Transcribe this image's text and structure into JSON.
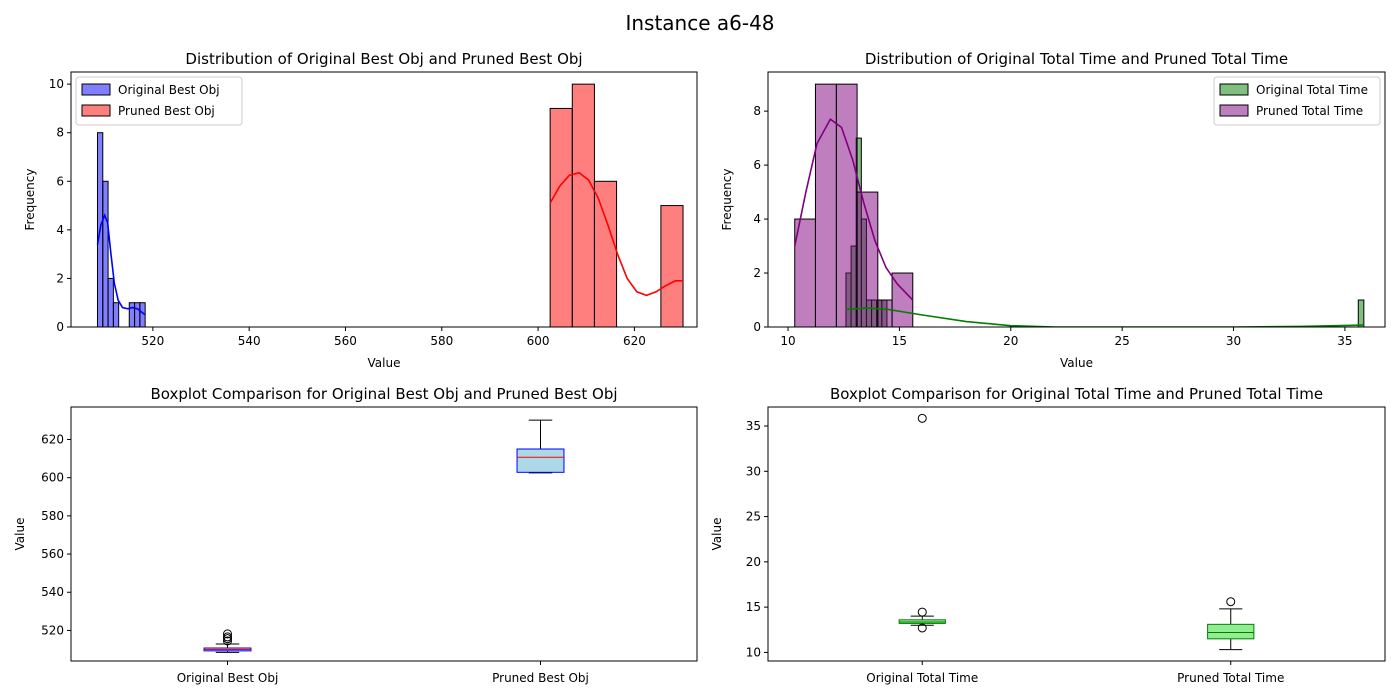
{
  "figure": {
    "suptitle": "Instance a6-48"
  },
  "chart_data": [
    {
      "id": "hist-obj",
      "type": "bar",
      "title": "Distribution of Original Best Obj and Pruned Best Obj",
      "xlabel": "Value",
      "ylabel": "Frequency",
      "xlim": [
        503,
        633
      ],
      "ylim": [
        0,
        10.5
      ],
      "xticks": [
        520,
        540,
        560,
        580,
        600,
        620
      ],
      "yticks": [
        0,
        2,
        4,
        6,
        8,
        10
      ],
      "legend_position": "upper-left",
      "series": [
        {
          "name": "Original Best Obj",
          "color": "#0000ff",
          "bin_edges": [
            508.5,
            509.6,
            510.7,
            511.8,
            512.9,
            514.0,
            515.1,
            516.2,
            517.3,
            518.4
          ],
          "counts": [
            8,
            6,
            2,
            1,
            0,
            0,
            1,
            1,
            1
          ],
          "kde": [
            [
              508.5,
              3.4
            ],
            [
              509.2,
              4.2
            ],
            [
              510.0,
              4.6
            ],
            [
              510.6,
              4.3
            ],
            [
              511.3,
              3.0
            ],
            [
              512.0,
              1.8
            ],
            [
              512.8,
              1.1
            ],
            [
              513.7,
              0.8
            ],
            [
              514.8,
              0.75
            ],
            [
              515.8,
              0.8
            ],
            [
              516.8,
              0.75
            ],
            [
              518.4,
              0.5
            ]
          ]
        },
        {
          "name": "Pruned Best Obj",
          "color": "#ff0000",
          "bin_edges": [
            602.5,
            607.1,
            611.7,
            616.3,
            620.9,
            625.5,
            630.1
          ],
          "counts": [
            9,
            10,
            6,
            0,
            0,
            5
          ],
          "kde": [
            [
              602.5,
              5.1
            ],
            [
              604.5,
              5.8
            ],
            [
              606.5,
              6.25
            ],
            [
              608.5,
              6.35
            ],
            [
              610.5,
              6.05
            ],
            [
              612.5,
              5.3
            ],
            [
              614.5,
              4.2
            ],
            [
              616.5,
              3.0
            ],
            [
              618.5,
              2.0
            ],
            [
              620.5,
              1.45
            ],
            [
              622.5,
              1.3
            ],
            [
              624.5,
              1.45
            ],
            [
              626.5,
              1.7
            ],
            [
              628.5,
              1.9
            ],
            [
              630.1,
              1.9
            ]
          ]
        }
      ]
    },
    {
      "id": "hist-time",
      "type": "bar",
      "title": "Distribution of Original Total Time and Pruned Total Time",
      "xlabel": "Value",
      "ylabel": "Frequency",
      "xlim": [
        9.1,
        36.8
      ],
      "ylim": [
        0,
        9.45
      ],
      "xticks": [
        10,
        15,
        20,
        25,
        30,
        35
      ],
      "yticks": [
        0,
        2,
        4,
        6,
        8
      ],
      "legend_position": "upper-right",
      "series": [
        {
          "name": "Original Total Time",
          "color": "#008000",
          "bin_edges": [
            12.6,
            12.83,
            13.06,
            13.29,
            13.52,
            13.75,
            13.98,
            14.21,
            14.44,
            35.6,
            35.85
          ],
          "counts": [
            2,
            3,
            7,
            4,
            1,
            1,
            1,
            1,
            0,
            1
          ],
          "kde": [
            [
              12.6,
              0.65
            ],
            [
              13.5,
              0.7
            ],
            [
              14.5,
              0.65
            ],
            [
              16.0,
              0.45
            ],
            [
              18.0,
              0.2
            ],
            [
              20.0,
              0.05
            ],
            [
              22.0,
              0.0
            ],
            [
              25.0,
              0.0
            ],
            [
              30.0,
              0.0
            ],
            [
              33.0,
              0.02
            ],
            [
              35.85,
              0.07
            ]
          ]
        },
        {
          "name": "Pruned Total Time",
          "color": "#800080",
          "bin_edges": [
            10.3,
            11.23,
            12.17,
            13.1,
            14.03,
            14.67,
            15.6
          ],
          "counts": [
            4,
            9,
            9,
            5,
            1,
            2
          ],
          "kde": [
            [
              10.3,
              3.0
            ],
            [
              10.8,
              5.0
            ],
            [
              11.3,
              6.8
            ],
            [
              11.9,
              7.7
            ],
            [
              12.4,
              7.4
            ],
            [
              12.9,
              6.2
            ],
            [
              13.4,
              4.6
            ],
            [
              13.9,
              3.2
            ],
            [
              14.4,
              2.2
            ],
            [
              14.9,
              1.6
            ],
            [
              15.6,
              1.0
            ]
          ]
        }
      ]
    },
    {
      "id": "box-obj",
      "type": "box",
      "title": "Boxplot Comparison for Original Best Obj and Pruned Best Obj",
      "xlabel": "",
      "ylabel": "Value",
      "ylim": [
        504,
        637
      ],
      "yticks": [
        520,
        540,
        560,
        580,
        600,
        620
      ],
      "box_fill": "#add8e6",
      "box_edge": "#0000ff",
      "median_color": "#ff0000",
      "categories": [
        "Original Best Obj",
        "Pruned Best Obj"
      ],
      "boxes": [
        {
          "whislo": 508.5,
          "q1": 509.3,
          "med": 510.0,
          "q3": 510.8,
          "whishi": 512.9,
          "fliers": [
            514.5,
            515.7,
            516.6,
            518.2
          ]
        },
        {
          "whislo": 602.5,
          "q1": 602.8,
          "med": 610.7,
          "q3": 615.0,
          "whishi": 630.1,
          "fliers": []
        }
      ]
    },
    {
      "id": "box-time",
      "type": "box",
      "title": "Boxplot Comparison for Original Total Time and Pruned Total Time",
      "xlabel": "",
      "ylabel": "Value",
      "ylim": [
        9.05,
        37.1
      ],
      "yticks": [
        10,
        15,
        20,
        25,
        30,
        35
      ],
      "box_fill": "#90ee90",
      "box_edge": "#008000",
      "median_color": "#008000",
      "categories": [
        "Original Total Time",
        "Pruned Total Time"
      ],
      "boxes": [
        {
          "whislo": 13.0,
          "q1": 13.2,
          "med": 13.35,
          "q3": 13.6,
          "whishi": 14.0,
          "fliers": [
            35.85,
            14.45,
            12.7
          ]
        },
        {
          "whislo": 10.3,
          "q1": 11.5,
          "med": 12.2,
          "q3": 13.1,
          "whishi": 14.8,
          "fliers": [
            15.6
          ]
        }
      ]
    }
  ]
}
